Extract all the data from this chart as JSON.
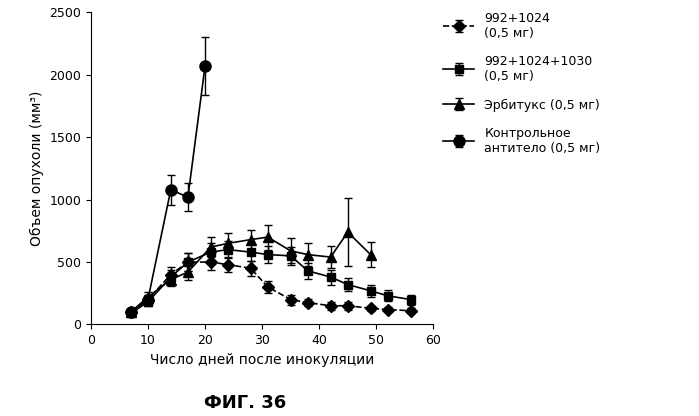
{
  "series": {
    "992+1024": {
      "label": "992+1024\n(0,5 мг)",
      "marker": "D",
      "linestyle": "--",
      "color": "#000000",
      "markersize": 6,
      "x": [
        7,
        10,
        14,
        17,
        21,
        24,
        28,
        31,
        35,
        38,
        42,
        45,
        49,
        52,
        56
      ],
      "y": [
        100,
        200,
        400,
        500,
        500,
        480,
        450,
        300,
        200,
        175,
        150,
        150,
        130,
        120,
        110
      ],
      "yerr": [
        20,
        40,
        60,
        70,
        60,
        60,
        60,
        50,
        40,
        30,
        30,
        30,
        20,
        20,
        20
      ]
    },
    "992+1024+1030": {
      "label": "992+1024+1030\n(0,5 мг)",
      "marker": "s",
      "linestyle": "-",
      "color": "#000000",
      "markersize": 6,
      "x": [
        7,
        10,
        14,
        17,
        21,
        24,
        28,
        31,
        35,
        38,
        42,
        45,
        49,
        52,
        56
      ],
      "y": [
        90,
        180,
        380,
        500,
        580,
        600,
        580,
        560,
        550,
        430,
        380,
        320,
        270,
        230,
        200
      ],
      "yerr": [
        20,
        35,
        55,
        70,
        70,
        70,
        70,
        70,
        70,
        65,
        60,
        55,
        50,
        45,
        40
      ]
    },
    "erbitux": {
      "label": "Эрбитукс (0,5 мг)",
      "marker": "^",
      "linestyle": "-",
      "color": "#000000",
      "markersize": 7,
      "x": [
        7,
        10,
        14,
        17,
        21,
        24,
        28,
        31,
        35,
        38,
        42,
        45,
        49
      ],
      "y": [
        100,
        220,
        360,
        420,
        620,
        650,
        680,
        700,
        590,
        560,
        540,
        740,
        560
      ],
      "yerr": [
        20,
        40,
        55,
        60,
        80,
        80,
        80,
        100,
        100,
        90,
        90,
        270,
        100
      ]
    },
    "control": {
      "label": "Контрольное\nантитело (0,5 мг)",
      "marker": "o",
      "linestyle": "-",
      "color": "#000000",
      "markersize": 8,
      "x": [
        7,
        10,
        14,
        17,
        20
      ],
      "y": [
        100,
        200,
        1080,
        1020,
        2070
      ],
      "yerr": [
        20,
        40,
        120,
        110,
        230
      ]
    }
  },
  "xlabel": "Число дней после инокуляции",
  "ylabel": "Объем опухоли (мм³)",
  "title": "ФИГ. 36",
  "xlim": [
    0,
    60
  ],
  "ylim": [
    0,
    2500
  ],
  "yticks": [
    0,
    500,
    1000,
    1500,
    2000,
    2500
  ],
  "xticks": [
    0,
    10,
    20,
    30,
    40,
    50,
    60
  ],
  "figsize": [
    6.99,
    4.16
  ],
  "dpi": 100
}
